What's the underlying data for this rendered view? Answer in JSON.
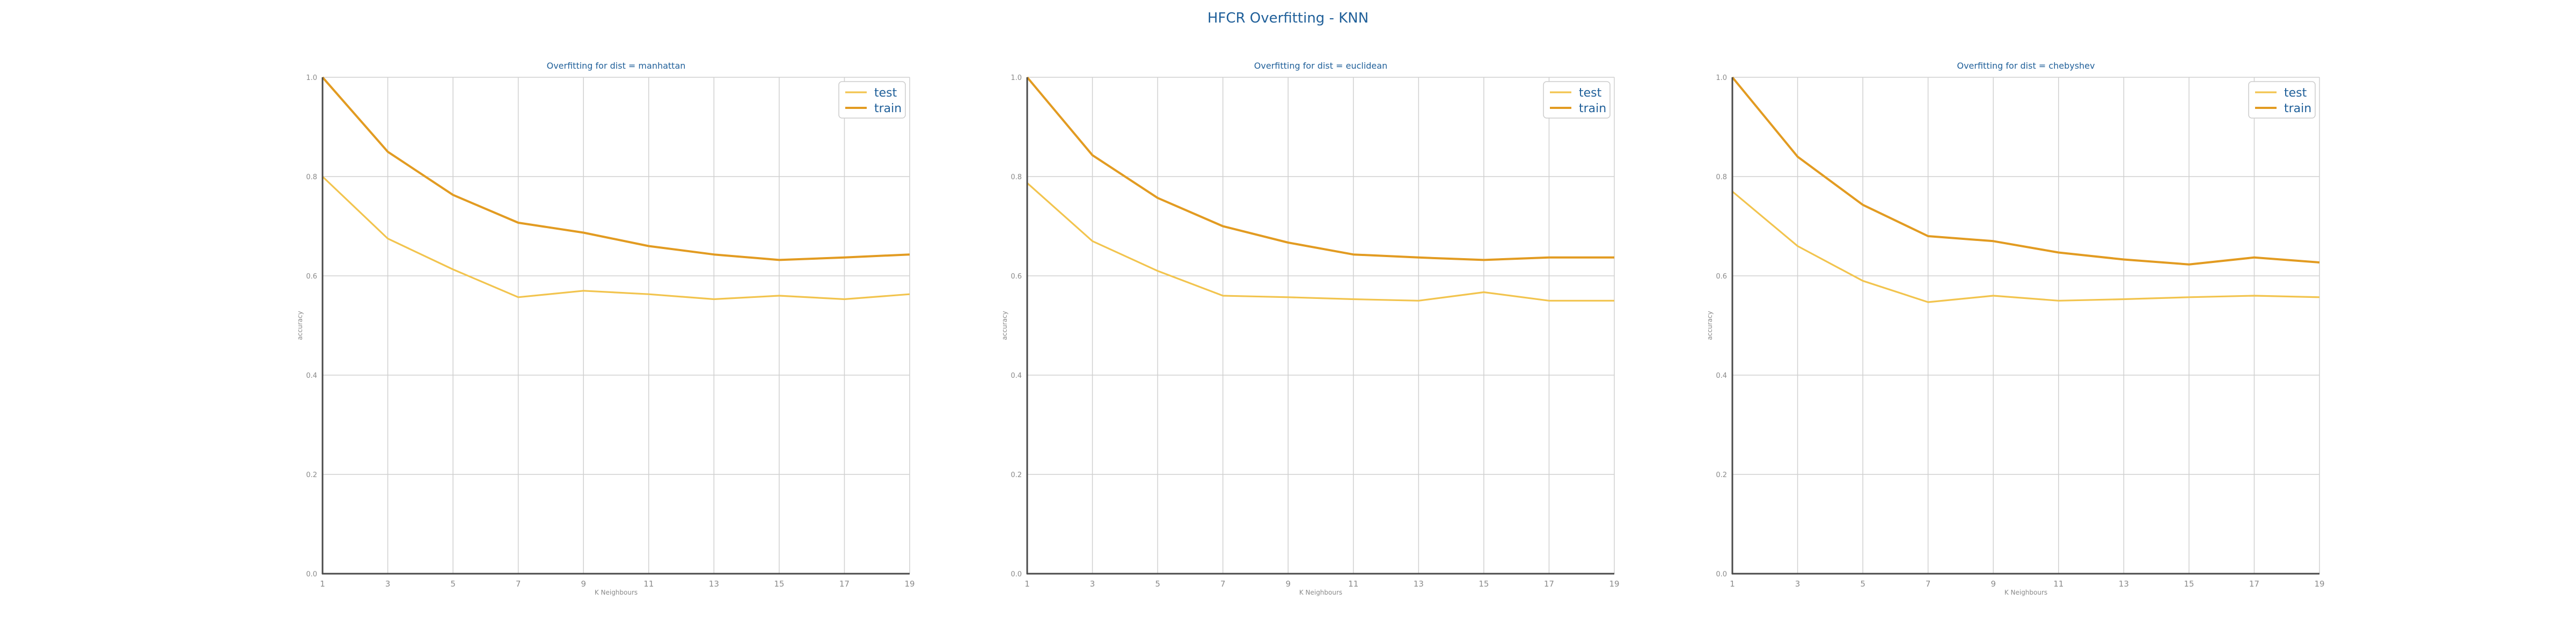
{
  "figure": {
    "suptitle": "HFCR Overfitting - KNN"
  },
  "colors": {
    "title": "#1f5f99",
    "test": "#f2c44e",
    "train": "#e29b21",
    "grid": "#d0d0d0",
    "axis": "#4a4a4a",
    "tick": "#8a8a8a"
  },
  "chart_data": [
    {
      "type": "line",
      "title": "Overfitting for dist = manhattan",
      "xlabel": "K Neighbours",
      "ylabel": "accuracy",
      "x": [
        1,
        3,
        5,
        7,
        9,
        11,
        13,
        15,
        17,
        19
      ],
      "xticks": [
        "1",
        "3",
        "5",
        "7",
        "9",
        "11",
        "13",
        "15",
        "17",
        "19"
      ],
      "ylim": [
        0.0,
        1.0
      ],
      "yticks": [
        "0.0",
        "0.2",
        "0.4",
        "0.6",
        "0.8",
        "1.0"
      ],
      "grid": true,
      "legend_position": "top-right",
      "series": [
        {
          "name": "test",
          "values": [
            0.8,
            0.675,
            0.613,
            0.557,
            0.57,
            0.563,
            0.553,
            0.56,
            0.553,
            0.563
          ]
        },
        {
          "name": "train",
          "values": [
            1.0,
            0.85,
            0.763,
            0.707,
            0.687,
            0.66,
            0.643,
            0.632,
            0.637,
            0.643
          ]
        }
      ]
    },
    {
      "type": "line",
      "title": "Overfitting for dist = euclidean",
      "xlabel": "K Neighbours",
      "ylabel": "accuracy",
      "x": [
        1,
        3,
        5,
        7,
        9,
        11,
        13,
        15,
        17,
        19
      ],
      "xticks": [
        "1",
        "3",
        "5",
        "7",
        "9",
        "11",
        "13",
        "15",
        "17",
        "19"
      ],
      "ylim": [
        0.0,
        1.0
      ],
      "yticks": [
        "0.0",
        "0.2",
        "0.4",
        "0.6",
        "0.8",
        "1.0"
      ],
      "grid": true,
      "legend_position": "top-right",
      "series": [
        {
          "name": "test",
          "values": [
            0.787,
            0.67,
            0.61,
            0.56,
            0.557,
            0.553,
            0.55,
            0.567,
            0.55,
            0.55
          ]
        },
        {
          "name": "train",
          "values": [
            1.0,
            0.843,
            0.757,
            0.7,
            0.667,
            0.643,
            0.637,
            0.632,
            0.637,
            0.637
          ]
        }
      ]
    },
    {
      "type": "line",
      "title": "Overfitting for dist = chebyshev",
      "xlabel": "K Neighbours",
      "ylabel": "accuracy",
      "x": [
        1,
        3,
        5,
        7,
        9,
        11,
        13,
        15,
        17,
        19
      ],
      "xticks": [
        "1",
        "3",
        "5",
        "7",
        "9",
        "11",
        "13",
        "15",
        "17",
        "19"
      ],
      "ylim": [
        0.0,
        1.0
      ],
      "yticks": [
        "0.0",
        "0.2",
        "0.4",
        "0.6",
        "0.8",
        "1.0"
      ],
      "grid": true,
      "legend_position": "top-right",
      "series": [
        {
          "name": "test",
          "values": [
            0.77,
            0.66,
            0.59,
            0.547,
            0.56,
            0.55,
            0.553,
            0.557,
            0.56,
            0.557
          ]
        },
        {
          "name": "train",
          "values": [
            1.0,
            0.84,
            0.743,
            0.68,
            0.67,
            0.647,
            0.633,
            0.623,
            0.637,
            0.627
          ]
        }
      ]
    }
  ]
}
